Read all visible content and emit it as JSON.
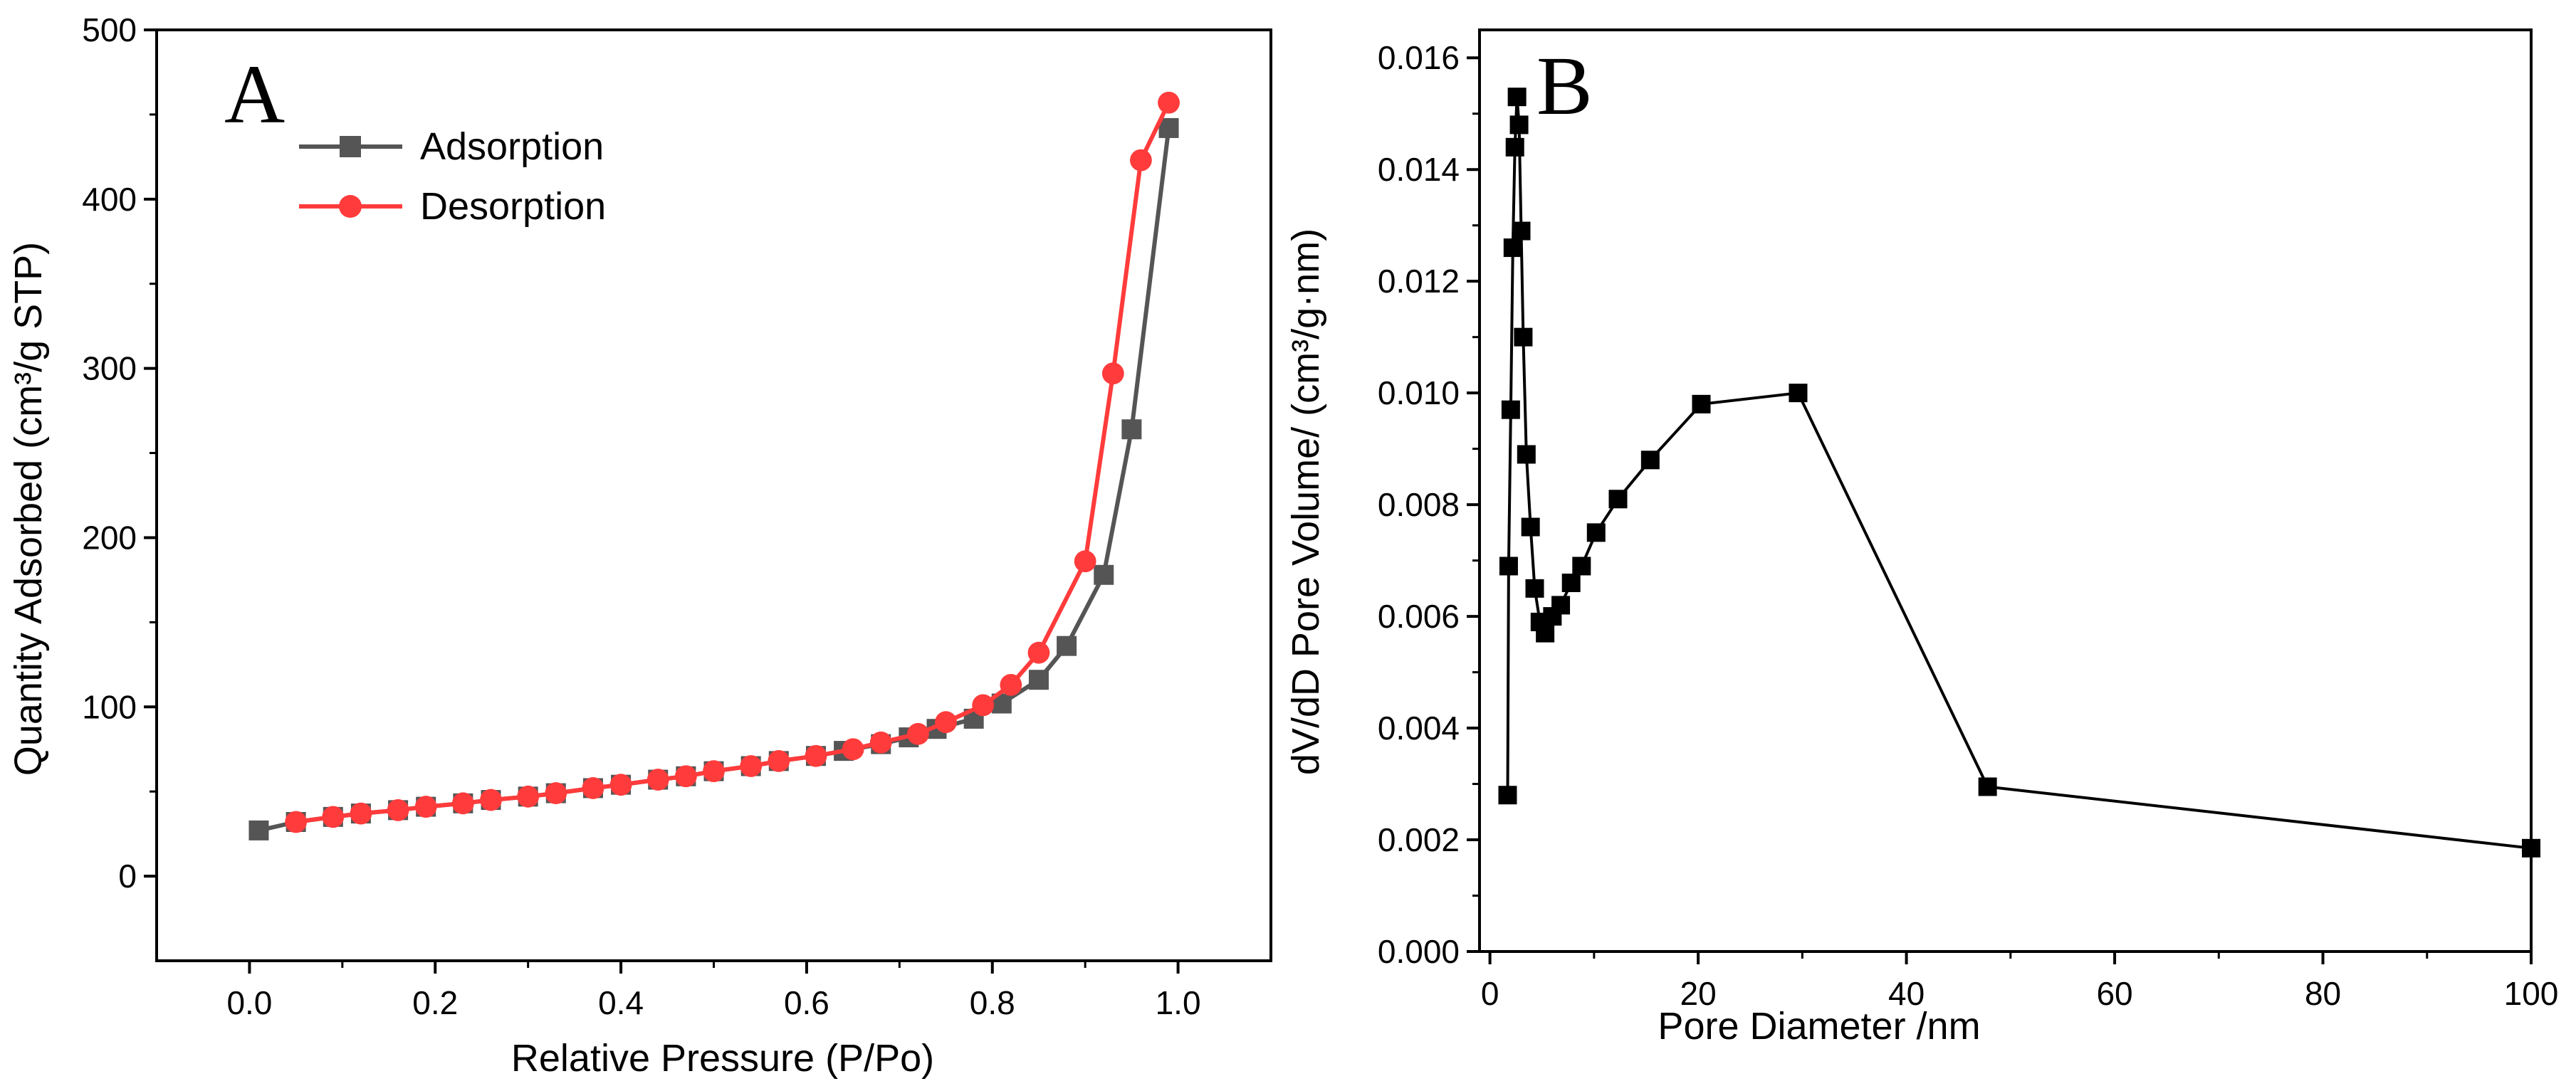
{
  "chart_data": [
    {
      "type": "line",
      "panel_label": "A",
      "title": "",
      "xlabel": "Relative Pressure (P/Po)",
      "ylabel": "Quantity Adsorbed (cm³/g STP)",
      "xlim": [
        -0.1,
        1.1
      ],
      "ylim": [
        -50,
        500
      ],
      "xticks": [
        "0.0",
        "0.2",
        "0.4",
        "0.6",
        "0.8",
        "1.0"
      ],
      "xtick_values": [
        0,
        0.2,
        0.4,
        0.6,
        0.8,
        1.0
      ],
      "yticks": [
        "0",
        "100",
        "200",
        "300",
        "400",
        "500"
      ],
      "ytick_values": [
        0,
        100,
        200,
        300,
        400,
        500
      ],
      "legend_position": "top-left",
      "series": [
        {
          "name": "Adsorption",
          "color": "#555555",
          "marker": "square",
          "x": [
            0.01,
            0.05,
            0.09,
            0.12,
            0.16,
            0.19,
            0.23,
            0.26,
            0.3,
            0.33,
            0.37,
            0.4,
            0.44,
            0.47,
            0.5,
            0.54,
            0.57,
            0.61,
            0.64,
            0.68,
            0.71,
            0.74,
            0.78,
            0.81,
            0.85,
            0.88,
            0.92,
            0.95,
            0.99
          ],
          "y": [
            27,
            32,
            35,
            37,
            39,
            41,
            43,
            45,
            47,
            49,
            52,
            54,
            57,
            59,
            62,
            65,
            68,
            71,
            74,
            78,
            82,
            87,
            93,
            102,
            116,
            136,
            178,
            264,
            442
          ]
        },
        {
          "name": "Desorption",
          "color": "#ff3b3b",
          "marker": "circle",
          "x": [
            0.05,
            0.09,
            0.12,
            0.16,
            0.19,
            0.23,
            0.26,
            0.3,
            0.33,
            0.37,
            0.4,
            0.44,
            0.47,
            0.5,
            0.54,
            0.57,
            0.61,
            0.65,
            0.68,
            0.72,
            0.75,
            0.79,
            0.82,
            0.85,
            0.9,
            0.93,
            0.96,
            0.99
          ],
          "y": [
            32,
            35,
            37,
            39,
            41,
            43,
            45,
            47,
            49,
            52,
            54,
            57,
            59,
            62,
            65,
            68,
            71,
            75,
            79,
            84,
            91,
            101,
            113,
            132,
            186,
            297,
            423,
            457
          ]
        }
      ]
    },
    {
      "type": "line",
      "panel_label": "B",
      "title": "",
      "xlabel": "Pore Diameter /nm",
      "ylabel": "dV/dD Pore Volume/ (cm³/g·nm)",
      "xlim": [
        -1,
        100
      ],
      "ylim": [
        0,
        0.0165
      ],
      "xticks": [
        "0",
        "20",
        "40",
        "60",
        "80",
        "100"
      ],
      "xtick_values": [
        0,
        20,
        40,
        60,
        80,
        100
      ],
      "yticks": [
        "0.000",
        "0.002",
        "0.004",
        "0.006",
        "0.008",
        "0.010",
        "0.012",
        "0.014",
        "0.016"
      ],
      "ytick_values": [
        0,
        0.002,
        0.004,
        0.006,
        0.008,
        0.01,
        0.012,
        0.014,
        0.016
      ],
      "series": [
        {
          "name": "dV/dD",
          "color": "#000000",
          "marker": "square",
          "x": [
            1.7,
            1.8,
            2.0,
            2.2,
            2.4,
            2.6,
            2.8,
            3.0,
            3.2,
            3.5,
            3.9,
            4.3,
            4.8,
            5.3,
            6.0,
            6.8,
            7.8,
            8.8,
            10.2,
            12.3,
            15.4,
            20.3,
            29.6,
            47.8,
            100
          ],
          "y": [
            0.0028,
            0.0069,
            0.0097,
            0.0126,
            0.0144,
            0.0153,
            0.0148,
            0.0129,
            0.011,
            0.0089,
            0.0076,
            0.0065,
            0.0059,
            0.0057,
            0.006,
            0.0062,
            0.0066,
            0.0069,
            0.0075,
            0.0081,
            0.0088,
            0.0098,
            0.01,
            0.00295,
            0.00185
          ]
        }
      ]
    }
  ]
}
